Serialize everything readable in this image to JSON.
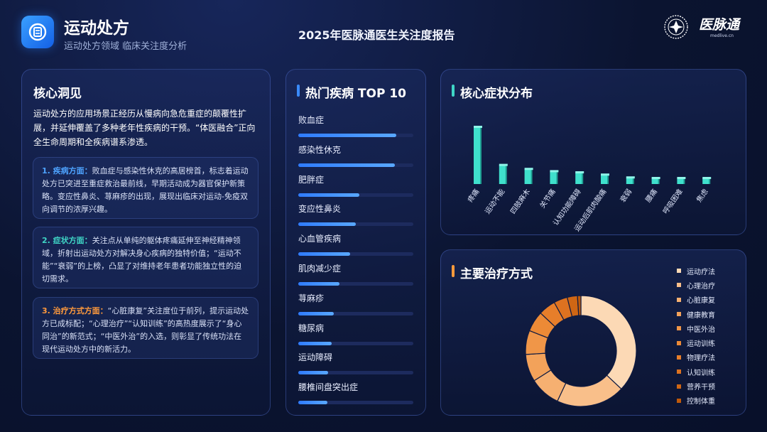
{
  "header": {
    "title": "运动处方",
    "subtitle": "运动处方领域 临床关注度分析",
    "report_title": "2025年医脉通医生关注度报告",
    "logo_text": "医脉通",
    "logo_sub": "medlive.cn"
  },
  "insight": {
    "title": "核心洞见",
    "intro": "运动处方的应用场景正经历从慢病向急危重症的颠覆性扩展，并延伸覆盖了多种老年性疾病的干预。“体医融合”正向全生命周期和全疾病谱系渗透。",
    "cards": [
      {
        "key": "1. 疾病方面：",
        "text": "败血症与感染性休克的高居榜首，标志着运动处方已突进至重症救治最前线，早期活动成为器官保护新策略。变应性鼻炎、荨麻疹的出现，展现出临床对运动-免疫双向调节的浓厚兴趣。",
        "color": "#4ea3ff"
      },
      {
        "key": "2. 症状方面：",
        "text": "关注点从单纯的躯体疼痛延伸至神经精神领域，折射出运动处方对解决身心疾病的独特价值；“运动不能”“衰弱”的上榜，凸显了对维持老年患者功能独立性的迫切需求。",
        "color": "#3fd6c6"
      },
      {
        "key": "3. 治疗方式方面：",
        "text": "“心脏康复”关注度位于前列，提示运动处方已成标配；“心理治疗”“认知训练”的高热度展示了“身心同治”的新范式；“中医外治”的入选，则彰显了传统功法在现代运动处方中的新活力。",
        "color": "#ff9a3c"
      }
    ]
  },
  "top_diseases": {
    "title": "热门疾病 TOP 10",
    "bar_color": "#3a8bff",
    "items": [
      {
        "label": "败血症",
        "value": 0.85
      },
      {
        "label": "感染性休克",
        "value": 0.84
      },
      {
        "label": "肥胖症",
        "value": 0.53
      },
      {
        "label": "变应性鼻炎",
        "value": 0.5
      },
      {
        "label": "心血管疾病",
        "value": 0.45
      },
      {
        "label": "肌肉减少症",
        "value": 0.36
      },
      {
        "label": "荨麻疹",
        "value": 0.31
      },
      {
        "label": "糖尿病",
        "value": 0.29
      },
      {
        "label": "运动障碍",
        "value": 0.26
      },
      {
        "label": "腰椎间盘突出症",
        "value": 0.25
      }
    ]
  },
  "symptoms": {
    "title": "核心症状分布",
    "bar_color": "#3fe0cc",
    "title_bar_color": "#3fd6c6"
  },
  "treatment": {
    "title": "主要治疗方式",
    "title_bar_color": "#ff9a3c"
  },
  "chart_data": [
    {
      "type": "bar",
      "categories": [
        "疼痛",
        "运动不能",
        "四肢麻木",
        "关节痛",
        "认知功能障碍",
        "运动后肌肉酸痛",
        "衰弱",
        "腰痛",
        "呼吸困难",
        "焦虑"
      ],
      "values": [
        100,
        33,
        26,
        22,
        20,
        16,
        11,
        10,
        10,
        10
      ],
      "ylim": [
        0,
        100
      ]
    },
    {
      "type": "pie",
      "labels": [
        "运动疗法",
        "心理治疗",
        "心脏康复",
        "健康教育",
        "中医外治",
        "运动训练",
        "物理疗法",
        "认知训练",
        "营养干预",
        "控制体重"
      ],
      "values": [
        37,
        20,
        9,
        8,
        7,
        6,
        5,
        4,
        3,
        1
      ],
      "colors": [
        "#fcd9b5",
        "#f9bf8a",
        "#f6b071",
        "#f3a25a",
        "#f09648",
        "#ec8a36",
        "#e77e2a",
        "#dd7220",
        "#cf6614",
        "#c05a0a"
      ],
      "legend": "right"
    }
  ]
}
